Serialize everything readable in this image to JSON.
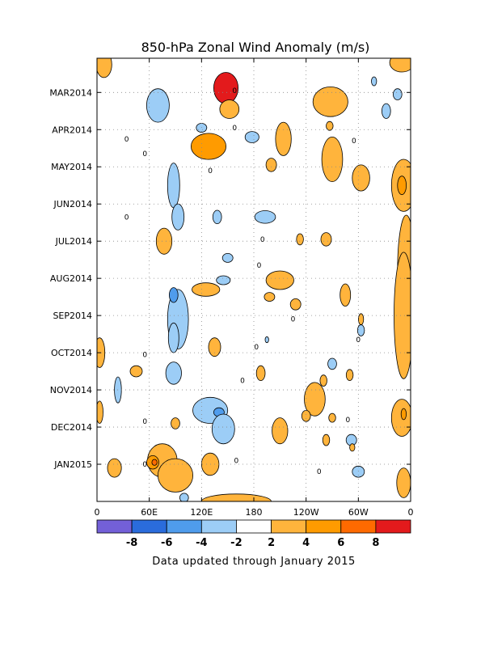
{
  "chart_data": {
    "type": "heatmap",
    "title": "850-hPa Zonal Wind Anomaly (m/s)",
    "footer": "Data updated through January 2015",
    "y_ticks": [
      "MAR2014",
      "APR2014",
      "MAY2014",
      "JUN2014",
      "JUL2014",
      "AUG2014",
      "SEP2014",
      "OCT2014",
      "NOV2014",
      "DEC2014",
      "JAN2015"
    ],
    "y_tick_month_index": [
      0,
      1,
      2,
      3,
      4,
      5,
      6,
      7,
      8,
      9,
      10
    ],
    "y_range_months": [
      -0.92,
      11.0
    ],
    "x_ticks": [
      "0",
      "60E",
      "120E",
      "180",
      "120W",
      "60W",
      "0"
    ],
    "x_tick_lon": [
      0,
      60,
      120,
      180,
      240,
      300,
      360
    ],
    "x_range": [
      0,
      360
    ],
    "grid": true,
    "colorbar": {
      "bounds": [
        -10,
        -8,
        -6,
        -4,
        -2,
        2,
        4,
        6,
        8,
        10
      ],
      "colors": [
        "#7360d8",
        "#2a6cdc",
        "#4f9cec",
        "#9ccdf6",
        "#ffffff",
        "#ffb43c",
        "#ff9b00",
        "#ff6a00",
        "#e31a1c"
      ],
      "labels": [
        "-8",
        "-6",
        "-4",
        "-2",
        "2",
        "4",
        "6",
        "8"
      ],
      "label_values": [
        -8,
        -6,
        -4,
        -2,
        2,
        4,
        6,
        8
      ]
    },
    "zero_labels": [
      {
        "lon": 34,
        "m": 1.25,
        "text": "0"
      },
      {
        "lon": 55,
        "m": 1.65,
        "text": "0"
      },
      {
        "lon": 158,
        "m": -0.05,
        "text": "0"
      },
      {
        "lon": 158,
        "m": 0.95,
        "text": "0"
      },
      {
        "lon": 130,
        "m": 2.1,
        "text": "0"
      },
      {
        "lon": 34,
        "m": 3.35,
        "text": "0"
      },
      {
        "lon": 190,
        "m": 3.95,
        "text": "0"
      },
      {
        "lon": 186,
        "m": 4.65,
        "text": "0"
      },
      {
        "lon": 295,
        "m": 1.3,
        "text": "0"
      },
      {
        "lon": 225,
        "m": 6.1,
        "text": "0"
      },
      {
        "lon": 183,
        "m": 6.85,
        "text": "0"
      },
      {
        "lon": 55,
        "m": 7.05,
        "text": "0"
      },
      {
        "lon": 300,
        "m": 6.65,
        "text": "0"
      },
      {
        "lon": 167,
        "m": 7.75,
        "text": "0"
      },
      {
        "lon": 55,
        "m": 8.85,
        "text": "0"
      },
      {
        "lon": 288,
        "m": 8.8,
        "text": "0"
      },
      {
        "lon": 160,
        "m": 9.9,
        "text": "0"
      },
      {
        "lon": 55,
        "m": 10.0,
        "text": "0"
      },
      {
        "lon": 255,
        "m": 10.2,
        "text": "0"
      }
    ],
    "blobs": [
      {
        "lon": 148,
        "m": -0.12,
        "rx": 14,
        "ry": 0.42,
        "value": 8.5
      },
      {
        "lon": 152,
        "m": 0.45,
        "rx": 11,
        "ry": 0.25,
        "value": 3
      },
      {
        "lon": 8,
        "m": -0.75,
        "rx": 9,
        "ry": 0.35,
        "value": 3
      },
      {
        "lon": 350,
        "m": -0.8,
        "rx": 14,
        "ry": 0.25,
        "value": 3
      },
      {
        "lon": 70,
        "m": 0.35,
        "rx": 13,
        "ry": 0.45,
        "value": -3
      },
      {
        "lon": 120,
        "m": 0.95,
        "rx": 6,
        "ry": 0.12,
        "value": -2.5
      },
      {
        "lon": 178,
        "m": 1.2,
        "rx": 8,
        "ry": 0.15,
        "value": -2.5
      },
      {
        "lon": 128,
        "m": 1.45,
        "rx": 20,
        "ry": 0.35,
        "value": 4
      },
      {
        "lon": 214,
        "m": 1.25,
        "rx": 9,
        "ry": 0.45,
        "value": 3
      },
      {
        "lon": 268,
        "m": 0.25,
        "rx": 20,
        "ry": 0.4,
        "value": 3
      },
      {
        "lon": 270,
        "m": 1.8,
        "rx": 12,
        "ry": 0.6,
        "value": 3
      },
      {
        "lon": 267,
        "m": 0.9,
        "rx": 4,
        "ry": 0.12,
        "value": 3
      },
      {
        "lon": 332,
        "m": 0.5,
        "rx": 5,
        "ry": 0.2,
        "value": -2.5
      },
      {
        "lon": 345,
        "m": 0.05,
        "rx": 5,
        "ry": 0.15,
        "value": -2.5
      },
      {
        "lon": 318,
        "m": -0.3,
        "rx": 3,
        "ry": 0.12,
        "value": -2.5
      },
      {
        "lon": 352,
        "m": 2.5,
        "rx": 14,
        "ry": 0.7,
        "value": 3
      },
      {
        "lon": 350,
        "m": 2.5,
        "rx": 5,
        "ry": 0.25,
        "value": 5
      },
      {
        "lon": 200,
        "m": 1.95,
        "rx": 6,
        "ry": 0.18,
        "value": 3
      },
      {
        "lon": 303,
        "m": 2.3,
        "rx": 10,
        "ry": 0.35,
        "value": 3
      },
      {
        "lon": 88,
        "m": 2.5,
        "rx": 7,
        "ry": 0.6,
        "value": -3
      },
      {
        "lon": 93,
        "m": 3.35,
        "rx": 7,
        "ry": 0.35,
        "value": -3
      },
      {
        "lon": 138,
        "m": 3.35,
        "rx": 5,
        "ry": 0.18,
        "value": -2.5
      },
      {
        "lon": 193,
        "m": 3.35,
        "rx": 12,
        "ry": 0.17,
        "value": -3
      },
      {
        "lon": 77,
        "m": 4.0,
        "rx": 9,
        "ry": 0.35,
        "value": 3
      },
      {
        "lon": 150,
        "m": 4.45,
        "rx": 6,
        "ry": 0.12,
        "value": -2.5
      },
      {
        "lon": 233,
        "m": 3.95,
        "rx": 4,
        "ry": 0.15,
        "value": 3
      },
      {
        "lon": 263,
        "m": 3.95,
        "rx": 6,
        "ry": 0.18,
        "value": 3
      },
      {
        "lon": 355,
        "m": 4.8,
        "rx": 10,
        "ry": 1.5,
        "value": 3
      },
      {
        "lon": 352,
        "m": 6.0,
        "rx": 11,
        "ry": 1.7,
        "value": 3
      },
      {
        "lon": 93,
        "m": 6.1,
        "rx": 12,
        "ry": 0.8,
        "value": -3
      },
      {
        "lon": 88,
        "m": 6.6,
        "rx": 6,
        "ry": 0.4,
        "value": -3
      },
      {
        "lon": 88,
        "m": 5.45,
        "rx": 5,
        "ry": 0.2,
        "value": -4.5
      },
      {
        "lon": 125,
        "m": 5.3,
        "rx": 16,
        "ry": 0.18,
        "value": 3
      },
      {
        "lon": 145,
        "m": 5.05,
        "rx": 8,
        "ry": 0.12,
        "value": -2.5
      },
      {
        "lon": 210,
        "m": 5.05,
        "rx": 16,
        "ry": 0.25,
        "value": 3
      },
      {
        "lon": 198,
        "m": 5.5,
        "rx": 6,
        "ry": 0.12,
        "value": 3
      },
      {
        "lon": 228,
        "m": 5.7,
        "rx": 6,
        "ry": 0.15,
        "value": 3
      },
      {
        "lon": 285,
        "m": 5.45,
        "rx": 6,
        "ry": 0.3,
        "value": 3
      },
      {
        "lon": 303,
        "m": 6.1,
        "rx": 3,
        "ry": 0.15,
        "value": 3
      },
      {
        "lon": 270,
        "m": 7.3,
        "rx": 5,
        "ry": 0.15,
        "value": -2.5
      },
      {
        "lon": 303,
        "m": 6.4,
        "rx": 4,
        "ry": 0.15,
        "value": -2.5
      },
      {
        "lon": 3,
        "m": 7.0,
        "rx": 6,
        "ry": 0.4,
        "value": 3
      },
      {
        "lon": 3,
        "m": 8.6,
        "rx": 4,
        "ry": 0.3,
        "value": 3
      },
      {
        "lon": 45,
        "m": 7.5,
        "rx": 7,
        "ry": 0.15,
        "value": 3
      },
      {
        "lon": 135,
        "m": 6.85,
        "rx": 7,
        "ry": 0.25,
        "value": 3
      },
      {
        "lon": 195,
        "m": 6.65,
        "rx": 2,
        "ry": 0.08,
        "value": -2.5
      },
      {
        "lon": 88,
        "m": 7.55,
        "rx": 9,
        "ry": 0.3,
        "value": -3
      },
      {
        "lon": 24,
        "m": 8.0,
        "rx": 4,
        "ry": 0.35,
        "value": -3
      },
      {
        "lon": 188,
        "m": 7.55,
        "rx": 5,
        "ry": 0.2,
        "value": 3
      },
      {
        "lon": 250,
        "m": 8.25,
        "rx": 12,
        "ry": 0.45,
        "value": 3
      },
      {
        "lon": 260,
        "m": 7.75,
        "rx": 4,
        "ry": 0.15,
        "value": 3
      },
      {
        "lon": 290,
        "m": 7.6,
        "rx": 4,
        "ry": 0.15,
        "value": 3
      },
      {
        "lon": 130,
        "m": 8.55,
        "rx": 20,
        "ry": 0.35,
        "value": -3
      },
      {
        "lon": 140,
        "m": 8.6,
        "rx": 6,
        "ry": 0.12,
        "value": -4.5
      },
      {
        "lon": 145,
        "m": 9.05,
        "rx": 13,
        "ry": 0.4,
        "value": -3
      },
      {
        "lon": 90,
        "m": 8.9,
        "rx": 5,
        "ry": 0.15,
        "value": 3
      },
      {
        "lon": 240,
        "m": 8.7,
        "rx": 5,
        "ry": 0.15,
        "value": 3
      },
      {
        "lon": 270,
        "m": 8.75,
        "rx": 4,
        "ry": 0.12,
        "value": 3
      },
      {
        "lon": 263,
        "m": 9.35,
        "rx": 4,
        "ry": 0.15,
        "value": 3
      },
      {
        "lon": 292,
        "m": 9.35,
        "rx": 6,
        "ry": 0.15,
        "value": -2.5
      },
      {
        "lon": 293,
        "m": 9.55,
        "rx": 3,
        "ry": 0.1,
        "value": 3
      },
      {
        "lon": 350,
        "m": 8.75,
        "rx": 12,
        "ry": 0.5,
        "value": 3
      },
      {
        "lon": 352,
        "m": 8.65,
        "rx": 3,
        "ry": 0.15,
        "value": 5
      },
      {
        "lon": 75,
        "m": 9.9,
        "rx": 17,
        "ry": 0.45,
        "value": 3
      },
      {
        "lon": 90,
        "m": 10.3,
        "rx": 20,
        "ry": 0.45,
        "value": 3
      },
      {
        "lon": 64,
        "m": 9.95,
        "rx": 7,
        "ry": 0.18,
        "value": 4.5
      },
      {
        "lon": 66,
        "m": 9.95,
        "rx": 3,
        "ry": 0.08,
        "value": 6.5
      },
      {
        "lon": 20,
        "m": 10.1,
        "rx": 8,
        "ry": 0.25,
        "value": 3
      },
      {
        "lon": 130,
        "m": 10.0,
        "rx": 10,
        "ry": 0.3,
        "value": 3
      },
      {
        "lon": 300,
        "m": 10.2,
        "rx": 7,
        "ry": 0.15,
        "value": -2.5
      },
      {
        "lon": 160,
        "m": 11.0,
        "rx": 40,
        "ry": 0.2,
        "value": 3
      },
      {
        "lon": 100,
        "m": 10.9,
        "rx": 5,
        "ry": 0.12,
        "value": -2.5
      },
      {
        "lon": 210,
        "m": 9.1,
        "rx": 9,
        "ry": 0.35,
        "value": 3
      },
      {
        "lon": 352,
        "m": 10.5,
        "rx": 8,
        "ry": 0.4,
        "value": 3
      }
    ]
  }
}
